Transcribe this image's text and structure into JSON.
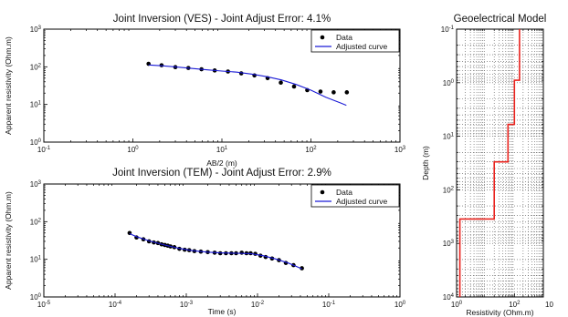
{
  "chart_data": [
    {
      "type": "scatter",
      "title": "Joint Inversion (VES) -  Joint Adjust Error: 4.1%",
      "xlabel": "AB/2 (m)",
      "ylabel": "Apparent resistivity  (Ohm.m)",
      "x_scale": "log",
      "y_scale": "log",
      "xlim": [
        0.1,
        1000
      ],
      "ylim": [
        1,
        1000
      ],
      "x_ticks": [
        [
          "10",
          "-1"
        ],
        [
          "10",
          "0"
        ],
        [
          "10",
          "1"
        ],
        [
          "10",
          "2"
        ],
        [
          "10",
          "3"
        ]
      ],
      "y_ticks": [
        [
          "10",
          "0"
        ],
        [
          "10",
          "1"
        ],
        [
          "10",
          "2"
        ],
        [
          "10",
          "3"
        ]
      ],
      "legend_position": "top-right",
      "series": [
        {
          "name": "Data",
          "marker": "dot",
          "x": [
            1.5,
            2.1,
            3.0,
            4.2,
            5.9,
            8.3,
            11.7,
            16.5,
            23.2,
            32.6,
            45.9,
            64.6,
            90.9,
            128,
            180,
            253
          ],
          "y": [
            120,
            110,
            98,
            93,
            86,
            80,
            75,
            67,
            59,
            50,
            38,
            30,
            24,
            22,
            21,
            21
          ]
        },
        {
          "name": "Adjusted curve",
          "marker": "line",
          "x": [
            1.5,
            2.2,
            3.2,
            4.7,
            6.9,
            10,
            14.7,
            21.5,
            31.6,
            46.4,
            68,
            100,
            147,
            215,
            250
          ],
          "y": [
            112,
            106,
            98,
            90,
            83,
            77,
            72,
            64,
            55,
            45,
            34,
            24,
            15.5,
            11,
            9.5
          ]
        }
      ]
    },
    {
      "type": "scatter",
      "title": "Joint Inversion (TEM) -  Joint Adjust Error: 2.9%",
      "xlabel": "Time (s)",
      "ylabel": "Apparent resistivity (Ohm.m)",
      "x_scale": "log",
      "y_scale": "log",
      "xlim": [
        1e-05,
        1
      ],
      "ylim": [
        1,
        1000
      ],
      "x_ticks": [
        [
          "10",
          "-5"
        ],
        [
          "10",
          "-4"
        ],
        [
          "10",
          "-3"
        ],
        [
          "10",
          "-2"
        ],
        [
          "10",
          "-1"
        ],
        [
          "10",
          "0"
        ]
      ],
      "y_ticks": [
        [
          "10",
          "0"
        ],
        [
          "10",
          "1"
        ],
        [
          "10",
          "2"
        ],
        [
          "10",
          "3"
        ]
      ],
      "legend_position": "top-right",
      "series": [
        {
          "name": "Data",
          "marker": "dot",
          "x": [
            0.00016,
            0.0002,
            0.00025,
            0.0003,
            0.00035,
            0.0004,
            0.00045,
            0.0005,
            0.00055,
            0.0006,
            0.00068,
            0.0008,
            0.00095,
            0.0011,
            0.0013,
            0.0016,
            0.002,
            0.0025,
            0.003,
            0.0036,
            0.0043,
            0.005,
            0.006,
            0.007,
            0.008,
            0.0093,
            0.011,
            0.013,
            0.016,
            0.02,
            0.025,
            0.032,
            0.042
          ],
          "y": [
            50,
            38,
            34,
            30,
            28,
            27,
            25,
            24,
            23,
            22,
            21,
            19,
            18,
            17.5,
            16.5,
            16,
            15.5,
            15,
            14.5,
            14.5,
            14.5,
            14.5,
            15,
            14.5,
            14.5,
            14,
            12.5,
            11.5,
            10.5,
            9.5,
            8,
            7,
            5.8
          ]
        },
        {
          "name": "Adjusted curve",
          "marker": "line",
          "x": [
            0.00016,
            0.0002,
            0.0003,
            0.0005,
            0.0008,
            0.0012,
            0.002,
            0.003,
            0.005,
            0.008,
            0.012,
            0.018,
            0.027,
            0.042
          ],
          "y": [
            48,
            40,
            31,
            24,
            19.5,
            17,
            15.5,
            14.8,
            14.5,
            14.2,
            12.5,
            10.2,
            8,
            5.6
          ]
        }
      ]
    },
    {
      "type": "line",
      "title": "Geoelectrical Model",
      "xlabel": "Resistivity (Ohm.m)",
      "ylabel": "Depth (m)",
      "x_scale": "log",
      "y_scale": "log",
      "y_reversed": true,
      "xlim": [
        1,
        1000
      ],
      "ylim": [
        0.1,
        10000
      ],
      "x_ticks": [
        [
          "10",
          "0"
        ],
        [
          "10",
          "2"
        ]
      ],
      "y_ticks": [
        [
          "10",
          "-1"
        ],
        [
          "10",
          "0"
        ],
        [
          "10",
          "1"
        ],
        [
          "10",
          "2"
        ],
        [
          "10",
          "3"
        ],
        [
          "10",
          "4"
        ]
      ],
      "right_edge_label": "10",
      "grid": "dotted minor",
      "series": [
        {
          "color": "#e8231e",
          "x": [
            150,
            150,
            100,
            100,
            60,
            60,
            20,
            20,
            1.3,
            1.3
          ],
          "y": [
            0.1,
            0.9,
            0.9,
            6,
            6,
            30,
            30,
            350,
            350,
            10000
          ]
        }
      ]
    }
  ]
}
